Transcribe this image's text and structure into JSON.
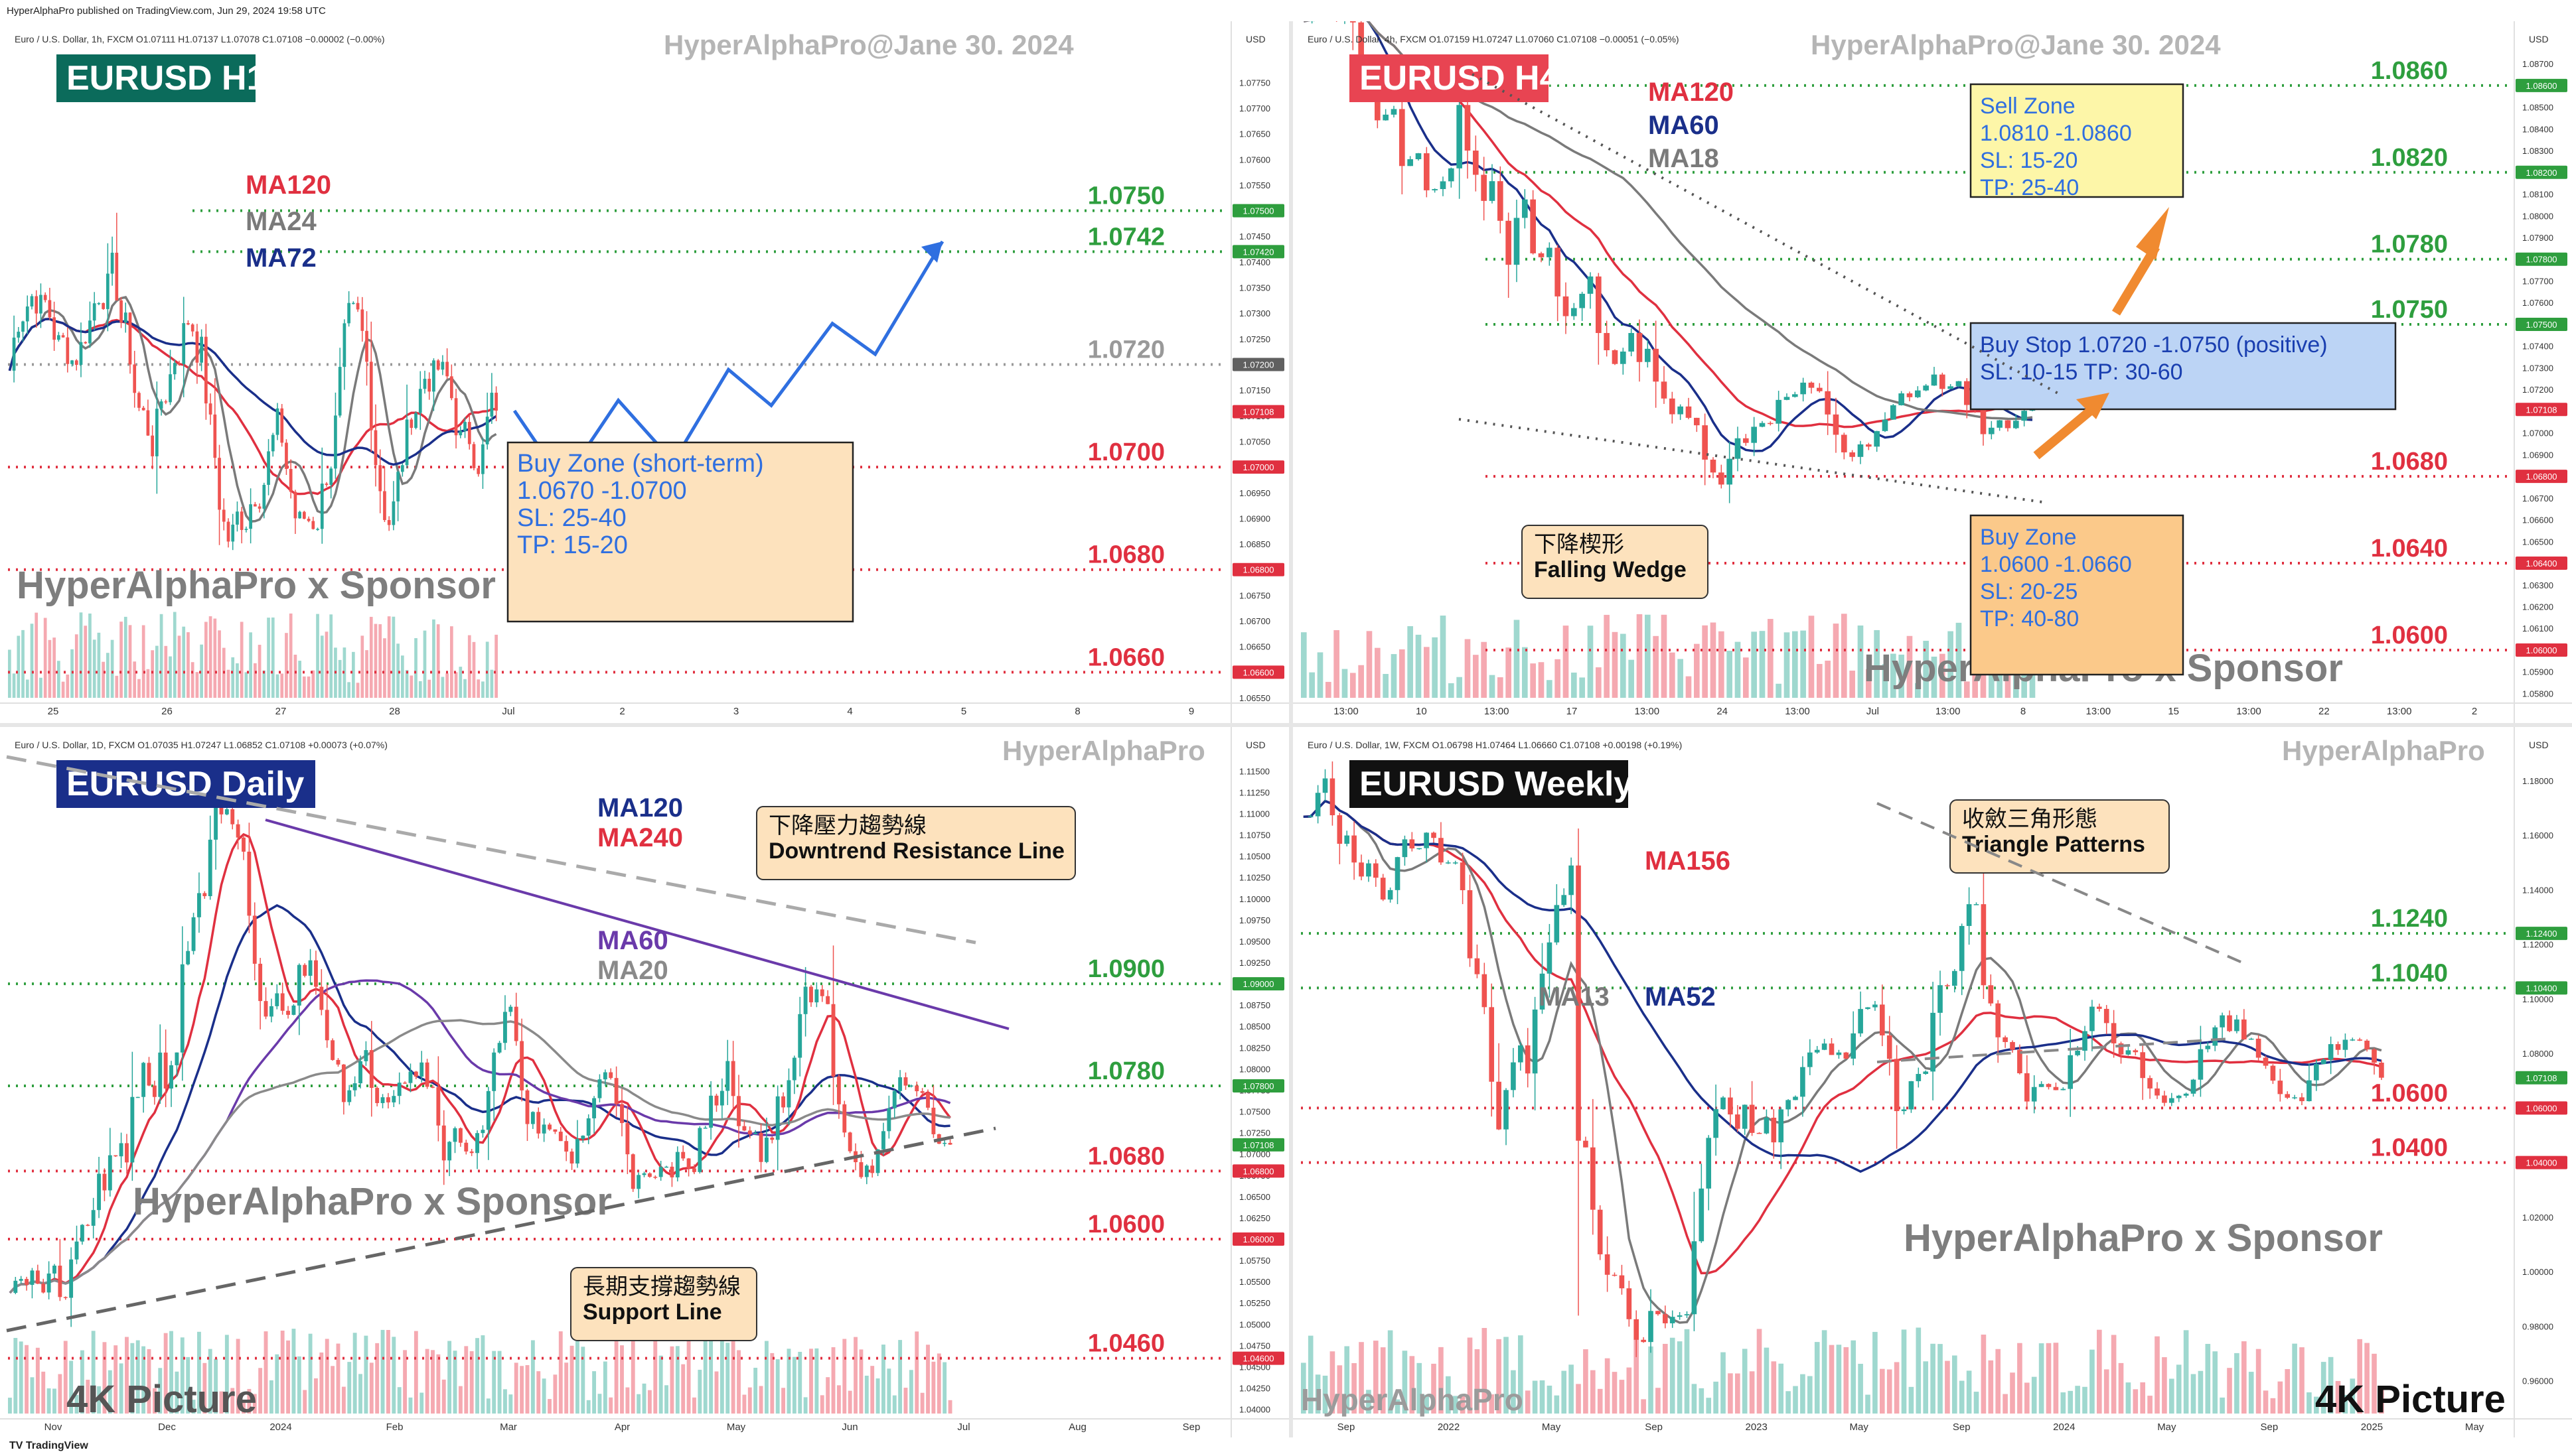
{
  "header": {
    "published": "HyperAlphaPro published on TradingView.com, Jun 29, 2024 19:58 UTC",
    "footer": "TradingView"
  },
  "chart_data": [
    {
      "id": "h1",
      "type": "candlestick",
      "title": "EURUSD H1",
      "title_bg": "#0b6b5b",
      "symbol_line": "Euro / U.S. Dollar, 1h, FXCM",
      "ohlc": "O1.07111 H1.07137 L1.07078 C1.07108 −0.00002 (−0.00%)",
      "watermark": "HyperAlphaPro@Jane 30. 2024",
      "sponsor": "HyperAlphaPro x Sponsor",
      "currency": "USD",
      "ylim": [
        1.0655,
        1.0785
      ],
      "x_ticks": [
        "25",
        "26",
        "27",
        "28",
        "Jul",
        "2",
        "3",
        "4",
        "5",
        "8",
        "9"
      ],
      "price_ticks": [
        1.0655,
        1.066,
        1.0665,
        1.067,
        1.0675,
        1.068,
        1.0685,
        1.069,
        1.0695,
        1.07,
        1.0705,
        1.071,
        1.0715,
        1.072,
        1.0725,
        1.073,
        1.0735,
        1.074,
        1.0745,
        1.075,
        1.0755,
        1.076,
        1.0765,
        1.077,
        1.0775
      ],
      "price_badges": [
        {
          "value": "1.07500",
          "color": "#2e9e3e"
        },
        {
          "value": "1.07420",
          "color": "#2e9e3e"
        },
        {
          "value": "1.07200",
          "color": "#606060"
        },
        {
          "value": "1.07108",
          "color": "#e03040"
        },
        {
          "value": "1.07000",
          "color": "#e03040"
        },
        {
          "value": "1.06800",
          "color": "#e03040"
        },
        {
          "value": "1.06600",
          "color": "#e03040"
        }
      ],
      "ma_labels": [
        {
          "text": "MA120",
          "color": "#e03040"
        },
        {
          "text": "MA24",
          "color": "#7a7a7a"
        },
        {
          "text": "MA72",
          "color": "#1a2f8a"
        }
      ],
      "levels": [
        {
          "price": 1.075,
          "label": "1.0750",
          "color": "#2e9e3e"
        },
        {
          "price": 1.0742,
          "label": "1.0742",
          "color": "#2e9e3e"
        },
        {
          "price": 1.072,
          "label": "1.0720",
          "color": "#999999"
        },
        {
          "price": 1.07,
          "label": "1.0700",
          "color": "#e03040"
        },
        {
          "price": 1.068,
          "label": "1.0680",
          "color": "#e03040"
        },
        {
          "price": 1.066,
          "label": "1.0660",
          "color": "#e03040"
        }
      ],
      "candle_series": {
        "n": 110,
        "start": 1.0712,
        "end": 1.0711,
        "seed": 7,
        "ranges": [
          [
            1.0718,
            1.0744
          ],
          [
            1.07,
            1.0738
          ],
          [
            1.0676,
            1.0716
          ],
          [
            1.0688,
            1.0728
          ],
          [
            1.0698,
            1.0726
          ]
        ]
      },
      "projection": {
        "color": "#2f6fe0",
        "points": [
          [
            0.0,
            1.0711
          ],
          [
            0.08,
            1.0697
          ],
          [
            0.17,
            1.0713
          ],
          [
            0.26,
            1.0701
          ],
          [
            0.35,
            1.0719
          ],
          [
            0.42,
            1.0712
          ],
          [
            0.52,
            1.0728
          ],
          [
            0.59,
            1.0722
          ],
          [
            0.7,
            1.0744
          ]
        ]
      },
      "boxes": [
        {
          "lines": [
            "Buy Zone (short-term)",
            "1.0670 -1.0700",
            "SL: 25-40",
            "TP: 15-20"
          ],
          "bg": "#fde2bd",
          "color": "#2f6fe0"
        }
      ]
    },
    {
      "id": "h4",
      "type": "candlestick",
      "title": "EURUSD H4",
      "title_bg": "#e84452",
      "symbol_line": "Euro / U.S. Dollar, 4h, FXCM",
      "ohlc": "O1.07159 H1.07247 L1.07060 C1.07108 −0.00051 (−0.05%)",
      "watermark": "HyperAlphaPro@Jane 30. 2024",
      "sponsor": "HyperAlphaPro x Sponsor",
      "currency": "USD",
      "ylim": [
        1.0578,
        1.0885
      ],
      "x_ticks": [
        "13:00",
        "10",
        "13:00",
        "17",
        "13:00",
        "24",
        "13:00",
        "Jul",
        "13:00",
        "8",
        "13:00",
        "15",
        "13:00",
        "22",
        "13:00",
        "2"
      ],
      "price_ticks": [
        1.058,
        1.059,
        1.06,
        1.061,
        1.062,
        1.063,
        1.064,
        1.065,
        1.066,
        1.067,
        1.068,
        1.069,
        1.07,
        1.071,
        1.072,
        1.073,
        1.074,
        1.075,
        1.076,
        1.077,
        1.078,
        1.079,
        1.08,
        1.081,
        1.082,
        1.083,
        1.084,
        1.085,
        1.086,
        1.087
      ],
      "price_badges": [
        {
          "value": "1.08600",
          "color": "#2e9e3e"
        },
        {
          "value": "1.08200",
          "color": "#2e9e3e"
        },
        {
          "value": "1.07800",
          "color": "#2e9e3e"
        },
        {
          "value": "1.07500",
          "color": "#2e9e3e"
        },
        {
          "value": "1.07108",
          "color": "#e03040"
        },
        {
          "value": "1.06800",
          "color": "#e03040"
        },
        {
          "value": "1.06400",
          "color": "#e03040"
        },
        {
          "value": "1.06000",
          "color": "#e03040"
        }
      ],
      "ma_labels": [
        {
          "text": "MA120",
          "color": "#e03040"
        },
        {
          "text": "MA60",
          "color": "#1a2f8a"
        },
        {
          "text": "MA18",
          "color": "#7a7a7a"
        }
      ],
      "levels": [
        {
          "price": 1.086,
          "label": "1.0860",
          "color": "#2e9e3e"
        },
        {
          "price": 1.082,
          "label": "1.0820",
          "color": "#2e9e3e"
        },
        {
          "price": 1.078,
          "label": "1.0780",
          "color": "#2e9e3e"
        },
        {
          "price": 1.075,
          "label": "1.0750",
          "color": "#2e9e3e"
        },
        {
          "price": 1.068,
          "label": "1.0680",
          "color": "#e03040"
        },
        {
          "price": 1.064,
          "label": "1.0640",
          "color": "#e03040"
        },
        {
          "price": 1.06,
          "label": "1.0600",
          "color": "#e03040"
        }
      ],
      "candle_series": {
        "n": 90,
        "start": 1.0885,
        "end": 1.0711,
        "seed": 13,
        "ranges": [
          [
            1.08,
            1.09
          ],
          [
            1.071,
            1.086
          ],
          [
            1.068,
            1.074
          ],
          [
            1.068,
            1.073
          ],
          [
            1.069,
            1.073
          ]
        ]
      },
      "boxes": [
        {
          "lines": [
            "Sell Zone",
            "1.0810 -1.0860",
            "SL: 15-20",
            "TP: 25-40"
          ],
          "bg": "#fdf6a8",
          "color": "#2f6fe0"
        },
        {
          "lines": [
            "Buy Stop 1.0720 -1.0750 (positive)",
            "SL: 10-15  TP: 30-60"
          ],
          "bg": "#bcd4f5",
          "color": "#1a3fb0"
        },
        {
          "lines": [
            "Buy Zone",
            "1.0600 -1.0660",
            "SL: 20-25",
            "TP: 40-80"
          ],
          "bg": "#fbc98a",
          "color": "#2f6fe0"
        }
      ],
      "callouts": [
        {
          "lines": [
            "下降楔形",
            "Falling Wedge"
          ],
          "bg": "#fde2bd"
        }
      ]
    },
    {
      "id": "daily",
      "type": "candlestick",
      "title": "EURUSD Daily",
      "title_bg": "#1a2f8a",
      "symbol_line": "Euro / U.S. Dollar, 1D, FXCM",
      "ohlc": "O1.07035 H1.07247 L1.06852 C1.07108 +0.00073 (+0.07%)",
      "watermark": "HyperAlphaPro",
      "sponsor": "HyperAlphaPro x Sponsor",
      "corner": "4K Picture",
      "currency": "USD",
      "ylim": [
        1.0395,
        1.119
      ],
      "x_ticks": [
        "Nov",
        "Dec",
        "2024",
        "Feb",
        "Mar",
        "Apr",
        "May",
        "Jun",
        "Jul",
        "Aug",
        "Sep"
      ],
      "price_ticks": [
        1.04,
        1.0425,
        1.045,
        1.0475,
        1.05,
        1.0525,
        1.055,
        1.0575,
        1.06,
        1.0625,
        1.065,
        1.0675,
        1.07,
        1.0725,
        1.075,
        1.0775,
        1.08,
        1.0825,
        1.085,
        1.0875,
        1.09,
        1.0925,
        1.095,
        1.0975,
        1.1,
        1.1025,
        1.105,
        1.1075,
        1.11,
        1.1125,
        1.115
      ],
      "price_badges": [
        {
          "value": "1.09000",
          "color": "#2e9e3e"
        },
        {
          "value": "1.07800",
          "color": "#2e9e3e"
        },
        {
          "value": "1.07108",
          "color": "#2e9e3e"
        },
        {
          "value": "1.06800",
          "color": "#e03040"
        },
        {
          "value": "1.06000",
          "color": "#e03040"
        },
        {
          "value": "1.04600",
          "color": "#e03040"
        }
      ],
      "ma_labels": [
        {
          "text": "MA120",
          "color": "#1a2f8a"
        },
        {
          "text": "MA240",
          "color": "#e03040"
        },
        {
          "text": "MA60",
          "color": "#6a3aaa"
        },
        {
          "text": "MA20",
          "color": "#8a8a8a"
        }
      ],
      "levels": [
        {
          "price": 1.09,
          "label": "1.0900",
          "color": "#2e9e3e"
        },
        {
          "price": 1.078,
          "label": "1.0780",
          "color": "#2e9e3e"
        },
        {
          "price": 1.068,
          "label": "1.0680",
          "color": "#e03040"
        },
        {
          "price": 1.06,
          "label": "1.0600",
          "color": "#e03040"
        },
        {
          "price": 1.046,
          "label": "1.0460",
          "color": "#e03040"
        }
      ],
      "candle_series": {
        "n": 170,
        "start": 1.053,
        "end": 1.0711,
        "seed": 21,
        "ranges": [
          [
            1.05,
            1.07
          ],
          [
            1.08,
            1.113
          ],
          [
            1.076,
            1.096
          ],
          [
            1.07,
            1.09
          ],
          [
            1.062,
            1.085
          ],
          [
            1.061,
            1.079
          ],
          [
            1.07,
            1.09
          ],
          [
            1.067,
            1.078
          ]
        ]
      },
      "callouts": [
        {
          "lines": [
            "下降壓力趨勢線",
            "Downtrend Resistance Line"
          ],
          "bg": "#fde2bd"
        },
        {
          "lines": [
            "長期支撐趨勢線",
            "Support Line"
          ],
          "bg": "#fde2bd"
        }
      ]
    },
    {
      "id": "weekly",
      "type": "candlestick",
      "title": "EURUSD Weekly",
      "title_bg": "#111111",
      "symbol_line": "Euro / U.S. Dollar, 1W, FXCM",
      "ohlc": "O1.06798 H1.07464 L1.06660 C1.07108 +0.00198 (+0.19%)",
      "watermark": "HyperAlphaPro",
      "sponsor": "HyperAlphaPro x Sponsor",
      "corner": "4K Picture",
      "corner2": "HyperAlphaPro",
      "currency": "USD",
      "ylim": [
        0.948,
        1.196
      ],
      "x_ticks": [
        "Sep",
        "2022",
        "May",
        "Sep",
        "2023",
        "May",
        "Sep",
        "2024",
        "May",
        "Sep",
        "2025",
        "May"
      ],
      "price_ticks": [
        0.96,
        0.98,
        1.0,
        1.02,
        1.04,
        1.06,
        1.08,
        1.1,
        1.12,
        1.14,
        1.16,
        1.18
      ],
      "price_badges": [
        {
          "value": "1.12400",
          "color": "#2e9e3e"
        },
        {
          "value": "1.10400",
          "color": "#2e9e3e"
        },
        {
          "value": "1.07108",
          "color": "#2e9e3e"
        },
        {
          "value": "1.06000",
          "color": "#e03040"
        },
        {
          "value": "1.04000",
          "color": "#e03040"
        }
      ],
      "ma_labels": [
        {
          "text": "MA156",
          "color": "#e03040"
        },
        {
          "text": "MA13",
          "color": "#7a7a7a"
        },
        {
          "text": "MA52",
          "color": "#1a2f8a"
        }
      ],
      "levels": [
        {
          "price": 1.124,
          "label": "1.1240",
          "color": "#2e9e3e"
        },
        {
          "price": 1.104,
          "label": "1.1040",
          "color": "#2e9e3e"
        },
        {
          "price": 1.06,
          "label": "1.0600",
          "color": "#e03040"
        },
        {
          "price": 1.04,
          "label": "1.0400",
          "color": "#e03040"
        }
      ],
      "candle_series": {
        "n": 150,
        "start": 1.16,
        "end": 1.0711,
        "seed": 33,
        "ranges": [
          [
            1.13,
            1.185
          ],
          [
            1.04,
            1.14
          ],
          [
            0.96,
            1.04
          ],
          [
            1.05,
            1.11
          ],
          [
            1.05,
            1.127
          ],
          [
            1.05,
            1.1
          ],
          [
            1.065,
            1.1
          ],
          [
            1.065,
            1.09
          ]
        ]
      },
      "callouts": [
        {
          "lines": [
            "收斂三角形態",
            "Triangle Patterns"
          ],
          "bg": "#fde2bd"
        }
      ]
    }
  ]
}
